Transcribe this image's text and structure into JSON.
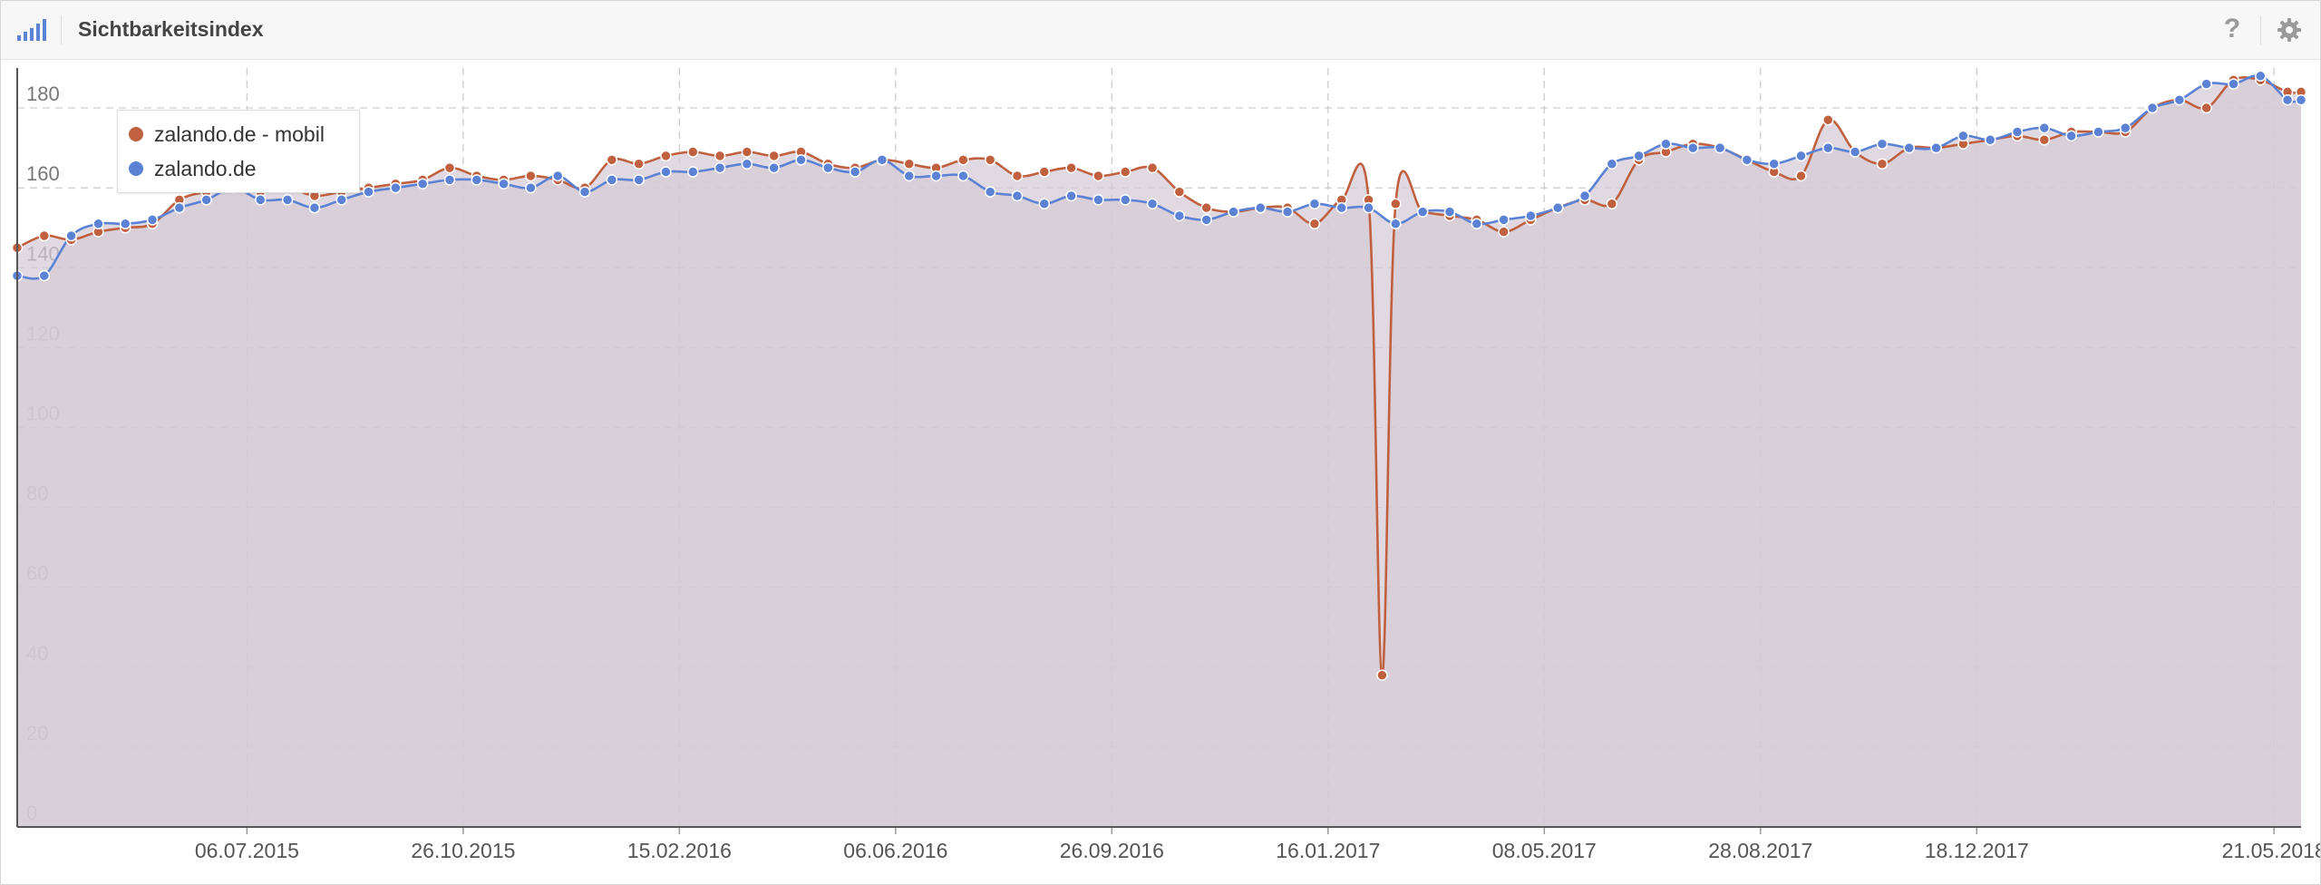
{
  "header": {
    "title": "Sichtbarkeitsindex",
    "icons": {
      "chart": "bar-chart-icon",
      "help": "help-icon",
      "settings": "gear-icon"
    },
    "help_glyph": "?"
  },
  "colors": {
    "mobile": "#c0603e",
    "desktop": "#5b82d4",
    "area": "#d4cad5",
    "grid": "#c9c9c9",
    "axis": "#555555"
  },
  "legend": [
    {
      "label": "zalando.de - mobil",
      "color": "#c0603e"
    },
    {
      "label": "zalando.de",
      "color": "#5b82d4"
    }
  ],
  "chart_data": {
    "type": "line",
    "title": "Sichtbarkeitsindex",
    "xlabel": "",
    "ylabel": "",
    "ylim": [
      0,
      190
    ],
    "y_ticks": [
      0,
      20,
      40,
      60,
      80,
      100,
      120,
      140,
      160,
      180
    ],
    "x_range": [
      "2015-03-09",
      "2018-06-04"
    ],
    "x_ticks": [
      {
        "date": "2015-07-06",
        "label": "06.07.2015"
      },
      {
        "date": "2015-10-26",
        "label": "26.10.2015"
      },
      {
        "date": "2016-02-15",
        "label": "15.02.2016"
      },
      {
        "date": "2016-06-06",
        "label": "06.06.2016"
      },
      {
        "date": "2016-09-26",
        "label": "26.09.2016"
      },
      {
        "date": "2017-01-16",
        "label": "16.01.2017"
      },
      {
        "date": "2017-05-08",
        "label": "08.05.2017"
      },
      {
        "date": "2017-08-28",
        "label": "28.08.2017"
      },
      {
        "date": "2017-12-18",
        "label": "18.12.2017"
      },
      {
        "date": "2018-05-21",
        "label": "21.05.2018"
      }
    ],
    "grid": true,
    "legend_position": "top-left",
    "series": [
      {
        "name": "zalando.de - mobil",
        "color": "#c0603e",
        "points": [
          [
            "2015-03-09",
            145
          ],
          [
            "2015-03-23",
            148
          ],
          [
            "2015-04-06",
            147
          ],
          [
            "2015-04-20",
            149
          ],
          [
            "2015-05-04",
            150
          ],
          [
            "2015-05-18",
            151
          ],
          [
            "2015-06-01",
            157
          ],
          [
            "2015-06-15",
            159
          ],
          [
            "2015-06-29",
            160
          ],
          [
            "2015-07-13",
            159
          ],
          [
            "2015-07-27",
            160
          ],
          [
            "2015-08-10",
            158
          ],
          [
            "2015-08-24",
            159
          ],
          [
            "2015-09-07",
            160
          ],
          [
            "2015-09-21",
            161
          ],
          [
            "2015-10-05",
            162
          ],
          [
            "2015-10-19",
            165
          ],
          [
            "2015-11-02",
            163
          ],
          [
            "2015-11-16",
            162
          ],
          [
            "2015-11-30",
            163
          ],
          [
            "2015-12-14",
            162
          ],
          [
            "2015-12-28",
            160
          ],
          [
            "2016-01-11",
            167
          ],
          [
            "2016-01-25",
            166
          ],
          [
            "2016-02-08",
            168
          ],
          [
            "2016-02-22",
            169
          ],
          [
            "2016-03-07",
            168
          ],
          [
            "2016-03-21",
            169
          ],
          [
            "2016-04-04",
            168
          ],
          [
            "2016-04-18",
            169
          ],
          [
            "2016-05-02",
            166
          ],
          [
            "2016-05-16",
            165
          ],
          [
            "2016-05-30",
            167
          ],
          [
            "2016-06-13",
            166
          ],
          [
            "2016-06-27",
            165
          ],
          [
            "2016-07-11",
            167
          ],
          [
            "2016-07-25",
            167
          ],
          [
            "2016-08-08",
            163
          ],
          [
            "2016-08-22",
            164
          ],
          [
            "2016-09-05",
            165
          ],
          [
            "2016-09-19",
            163
          ],
          [
            "2016-10-03",
            164
          ],
          [
            "2016-10-17",
            165
          ],
          [
            "2016-10-31",
            159
          ],
          [
            "2016-11-14",
            155
          ],
          [
            "2016-11-28",
            154
          ],
          [
            "2016-12-12",
            155
          ],
          [
            "2016-12-26",
            155
          ],
          [
            "2017-01-09",
            151
          ],
          [
            "2017-01-23",
            157
          ],
          [
            "2017-02-06",
            157
          ],
          [
            "2017-02-13",
            38
          ],
          [
            "2017-02-20",
            156
          ],
          [
            "2017-03-06",
            154
          ],
          [
            "2017-03-20",
            153
          ],
          [
            "2017-04-03",
            152
          ],
          [
            "2017-04-17",
            149
          ],
          [
            "2017-05-01",
            152
          ],
          [
            "2017-05-15",
            155
          ],
          [
            "2017-05-29",
            157
          ],
          [
            "2017-06-12",
            156
          ],
          [
            "2017-06-26",
            167
          ],
          [
            "2017-07-10",
            169
          ],
          [
            "2017-07-24",
            171
          ],
          [
            "2017-08-07",
            170
          ],
          [
            "2017-08-21",
            167
          ],
          [
            "2017-09-04",
            164
          ],
          [
            "2017-09-18",
            163
          ],
          [
            "2017-10-02",
            177
          ],
          [
            "2017-10-16",
            169
          ],
          [
            "2017-10-30",
            166
          ],
          [
            "2017-11-13",
            170
          ],
          [
            "2017-11-27",
            170
          ],
          [
            "2017-12-11",
            171
          ],
          [
            "2017-12-25",
            172
          ],
          [
            "2018-01-08",
            173
          ],
          [
            "2018-01-22",
            172
          ],
          [
            "2018-02-05",
            174
          ],
          [
            "2018-02-19",
            174
          ],
          [
            "2018-03-05",
            174
          ],
          [
            "2018-03-19",
            180
          ],
          [
            "2018-04-02",
            182
          ],
          [
            "2018-04-16",
            180
          ],
          [
            "2018-04-30",
            187
          ],
          [
            "2018-05-14",
            187
          ],
          [
            "2018-05-28",
            184
          ],
          [
            "2018-06-04",
            184
          ]
        ]
      },
      {
        "name": "zalando.de",
        "color": "#5b82d4",
        "points": [
          [
            "2015-03-09",
            138
          ],
          [
            "2015-03-23",
            138
          ],
          [
            "2015-04-06",
            148
          ],
          [
            "2015-04-20",
            151
          ],
          [
            "2015-05-04",
            151
          ],
          [
            "2015-05-18",
            152
          ],
          [
            "2015-06-01",
            155
          ],
          [
            "2015-06-15",
            157
          ],
          [
            "2015-06-29",
            160
          ],
          [
            "2015-07-13",
            157
          ],
          [
            "2015-07-27",
            157
          ],
          [
            "2015-08-10",
            155
          ],
          [
            "2015-08-24",
            157
          ],
          [
            "2015-09-07",
            159
          ],
          [
            "2015-09-21",
            160
          ],
          [
            "2015-10-05",
            161
          ],
          [
            "2015-10-19",
            162
          ],
          [
            "2015-11-02",
            162
          ],
          [
            "2015-11-16",
            161
          ],
          [
            "2015-11-30",
            160
          ],
          [
            "2015-12-14",
            163
          ],
          [
            "2015-12-28",
            159
          ],
          [
            "2016-01-11",
            162
          ],
          [
            "2016-01-25",
            162
          ],
          [
            "2016-02-08",
            164
          ],
          [
            "2016-02-22",
            164
          ],
          [
            "2016-03-07",
            165
          ],
          [
            "2016-03-21",
            166
          ],
          [
            "2016-04-04",
            165
          ],
          [
            "2016-04-18",
            167
          ],
          [
            "2016-05-02",
            165
          ],
          [
            "2016-05-16",
            164
          ],
          [
            "2016-05-30",
            167
          ],
          [
            "2016-06-13",
            163
          ],
          [
            "2016-06-27",
            163
          ],
          [
            "2016-07-11",
            163
          ],
          [
            "2016-07-25",
            159
          ],
          [
            "2016-08-08",
            158
          ],
          [
            "2016-08-22",
            156
          ],
          [
            "2016-09-05",
            158
          ],
          [
            "2016-09-19",
            157
          ],
          [
            "2016-10-03",
            157
          ],
          [
            "2016-10-17",
            156
          ],
          [
            "2016-10-31",
            153
          ],
          [
            "2016-11-14",
            152
          ],
          [
            "2016-11-28",
            154
          ],
          [
            "2016-12-12",
            155
          ],
          [
            "2016-12-26",
            154
          ],
          [
            "2017-01-09",
            156
          ],
          [
            "2017-01-23",
            155
          ],
          [
            "2017-02-06",
            155
          ],
          [
            "2017-02-20",
            151
          ],
          [
            "2017-03-06",
            154
          ],
          [
            "2017-03-20",
            154
          ],
          [
            "2017-04-03",
            151
          ],
          [
            "2017-04-17",
            152
          ],
          [
            "2017-05-01",
            153
          ],
          [
            "2017-05-15",
            155
          ],
          [
            "2017-05-29",
            158
          ],
          [
            "2017-06-12",
            166
          ],
          [
            "2017-06-26",
            168
          ],
          [
            "2017-07-10",
            171
          ],
          [
            "2017-07-24",
            170
          ],
          [
            "2017-08-07",
            170
          ],
          [
            "2017-08-21",
            167
          ],
          [
            "2017-09-04",
            166
          ],
          [
            "2017-09-18",
            168
          ],
          [
            "2017-10-02",
            170
          ],
          [
            "2017-10-16",
            169
          ],
          [
            "2017-10-30",
            171
          ],
          [
            "2017-11-13",
            170
          ],
          [
            "2017-11-27",
            170
          ],
          [
            "2017-12-11",
            173
          ],
          [
            "2017-12-25",
            172
          ],
          [
            "2018-01-08",
            174
          ],
          [
            "2018-01-22",
            175
          ],
          [
            "2018-02-05",
            173
          ],
          [
            "2018-02-19",
            174
          ],
          [
            "2018-03-05",
            175
          ],
          [
            "2018-03-19",
            180
          ],
          [
            "2018-04-02",
            182
          ],
          [
            "2018-04-16",
            186
          ],
          [
            "2018-04-30",
            186
          ],
          [
            "2018-05-14",
            188
          ],
          [
            "2018-05-28",
            182
          ],
          [
            "2018-06-04",
            182
          ]
        ]
      }
    ]
  }
}
